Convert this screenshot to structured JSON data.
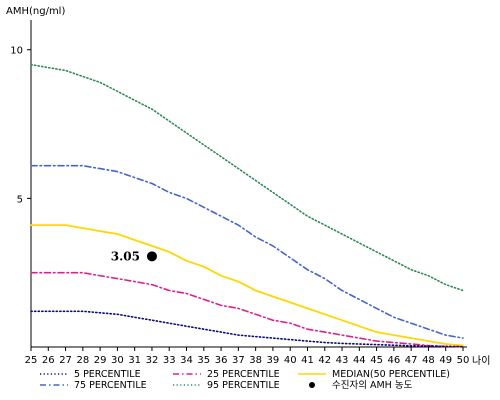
{
  "chart_data": {
    "type": "line",
    "ylabel": "AMH(ng/ml)",
    "xlabel": "나이",
    "x": [
      25,
      26,
      27,
      28,
      29,
      30,
      31,
      32,
      33,
      34,
      35,
      36,
      37,
      38,
      39,
      40,
      41,
      42,
      43,
      44,
      45,
      46,
      47,
      48,
      49,
      50
    ],
    "xlim": [
      25,
      50
    ],
    "ylim": [
      0,
      11
    ],
    "yticks": [
      5,
      10
    ],
    "series": [
      {
        "name": "95 PERCENTILE",
        "color": "#2e8b57",
        "dash": "dotted",
        "values": [
          9.5,
          9.4,
          9.3,
          9.1,
          8.9,
          8.6,
          8.3,
          8.0,
          7.6,
          7.2,
          6.8,
          6.4,
          6.0,
          5.6,
          5.2,
          4.8,
          4.4,
          4.1,
          3.8,
          3.5,
          3.2,
          2.9,
          2.6,
          2.4,
          2.1,
          1.9
        ]
      },
      {
        "name": "75 PERCENTILE",
        "color": "#4466cc",
        "dash": "dashdot",
        "values": [
          6.1,
          6.1,
          6.1,
          6.1,
          6.0,
          5.9,
          5.7,
          5.5,
          5.2,
          5.0,
          4.7,
          4.4,
          4.1,
          3.7,
          3.4,
          3.0,
          2.6,
          2.3,
          1.9,
          1.6,
          1.3,
          1.0,
          0.8,
          0.6,
          0.4,
          0.3
        ]
      },
      {
        "name": "MEDIAN(50 PERCENTILE)",
        "color": "#ffd700",
        "dash": "solid",
        "values": [
          4.1,
          4.1,
          4.1,
          4.0,
          3.9,
          3.8,
          3.6,
          3.4,
          3.2,
          2.9,
          2.7,
          2.4,
          2.2,
          1.9,
          1.7,
          1.5,
          1.3,
          1.1,
          0.9,
          0.7,
          0.5,
          0.4,
          0.3,
          0.2,
          0.1,
          0.05
        ]
      },
      {
        "name": "25 PERCENTILE",
        "color": "#e0208a",
        "dash": "dashdot",
        "values": [
          2.5,
          2.5,
          2.5,
          2.5,
          2.4,
          2.3,
          2.2,
          2.1,
          1.9,
          1.8,
          1.6,
          1.4,
          1.3,
          1.1,
          0.9,
          0.8,
          0.6,
          0.5,
          0.4,
          0.3,
          0.2,
          0.15,
          0.1,
          0.05,
          0.02,
          0.01
        ]
      },
      {
        "name": "5 PERCENTILE",
        "color": "#0a0a78",
        "dash": "dotted",
        "values": [
          1.2,
          1.2,
          1.2,
          1.2,
          1.15,
          1.1,
          1.0,
          0.9,
          0.8,
          0.7,
          0.6,
          0.5,
          0.4,
          0.35,
          0.3,
          0.25,
          0.2,
          0.15,
          0.12,
          0.1,
          0.08,
          0.06,
          0.04,
          0.03,
          0.02,
          0.01
        ]
      }
    ],
    "marker": {
      "name": "수진자의 AMH 농도",
      "x": 32,
      "y": 3.05,
      "label": "3.05"
    },
    "legend_placement": "bottom",
    "legend_order": [
      "5 PERCENTILE",
      "25 PERCENTILE",
      "MEDIAN(50 PERCENTILE)",
      "75 PERCENTILE",
      "95 PERCENTILE",
      "수진자의 AMH 농도"
    ],
    "grid": false
  }
}
